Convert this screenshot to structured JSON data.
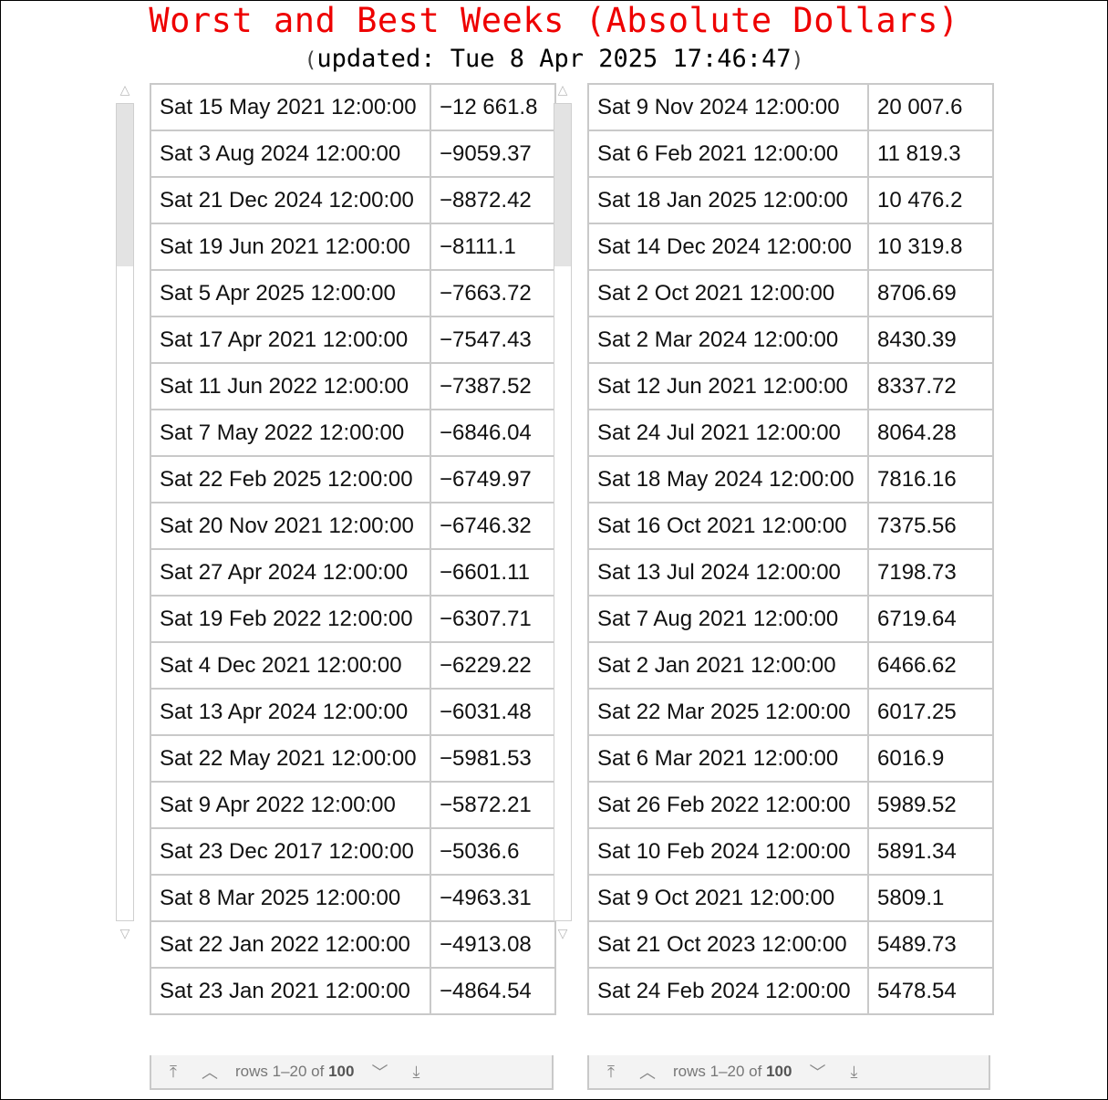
{
  "header": {
    "title": "Worst and Best Weeks",
    "title_paren": "(Absolute Dollars)",
    "updated_open": "(",
    "updated_text": "updated: Tue 8 Apr 2025 17:46:47",
    "updated_close": ")"
  },
  "worst": {
    "rows": [
      {
        "date": "Sat 15 May 2021 12:00:00",
        "value": "−12 661.8"
      },
      {
        "date": "Sat 3 Aug 2024 12:00:00",
        "value": "−9059.37"
      },
      {
        "date": "Sat 21 Dec 2024 12:00:00",
        "value": "−8872.42"
      },
      {
        "date": "Sat 19 Jun 2021 12:00:00",
        "value": "−8111.1"
      },
      {
        "date": "Sat 5 Apr 2025 12:00:00",
        "value": "−7663.72"
      },
      {
        "date": "Sat 17 Apr 2021 12:00:00",
        "value": "−7547.43"
      },
      {
        "date": "Sat 11 Jun 2022 12:00:00",
        "value": "−7387.52"
      },
      {
        "date": "Sat 7 May 2022 12:00:00",
        "value": "−6846.04"
      },
      {
        "date": "Sat 22 Feb 2025 12:00:00",
        "value": "−6749.97"
      },
      {
        "date": "Sat 20 Nov 2021 12:00:00",
        "value": "−6746.32"
      },
      {
        "date": "Sat 27 Apr 2024 12:00:00",
        "value": "−6601.11"
      },
      {
        "date": "Sat 19 Feb 2022 12:00:00",
        "value": "−6307.71"
      },
      {
        "date": "Sat 4 Dec 2021 12:00:00",
        "value": "−6229.22"
      },
      {
        "date": "Sat 13 Apr 2024 12:00:00",
        "value": "−6031.48"
      },
      {
        "date": "Sat 22 May 2021 12:00:00",
        "value": "−5981.53"
      },
      {
        "date": "Sat 9 Apr 2022 12:00:00",
        "value": "−5872.21"
      },
      {
        "date": "Sat 23 Dec 2017 12:00:00",
        "value": "−5036.6"
      },
      {
        "date": "Sat 8 Mar 2025 12:00:00",
        "value": "−4963.31"
      },
      {
        "date": "Sat 22 Jan 2022 12:00:00",
        "value": "−4913.08"
      },
      {
        "date": "Sat 23 Jan 2021 12:00:00",
        "value": "−4864.54"
      }
    ],
    "footer": {
      "rows_prefix": "rows 1–20 of",
      "total": "100"
    }
  },
  "best": {
    "rows": [
      {
        "date": "Sat 9 Nov 2024 12:00:00",
        "value": "20 007.6"
      },
      {
        "date": "Sat 6 Feb 2021 12:00:00",
        "value": "11 819.3"
      },
      {
        "date": "Sat 18 Jan 2025 12:00:00",
        "value": "10 476.2"
      },
      {
        "date": "Sat 14 Dec 2024 12:00:00",
        "value": "10 319.8"
      },
      {
        "date": "Sat 2 Oct 2021 12:00:00",
        "value": "8706.69"
      },
      {
        "date": "Sat 2 Mar 2024 12:00:00",
        "value": "8430.39"
      },
      {
        "date": "Sat 12 Jun 2021 12:00:00",
        "value": "8337.72"
      },
      {
        "date": "Sat 24 Jul 2021 12:00:00",
        "value": "8064.28"
      },
      {
        "date": "Sat 18 May 2024 12:00:00",
        "value": "7816.16"
      },
      {
        "date": "Sat 16 Oct 2021 12:00:00",
        "value": "7375.56"
      },
      {
        "date": "Sat 13 Jul 2024 12:00:00",
        "value": "7198.73"
      },
      {
        "date": "Sat 7 Aug 2021 12:00:00",
        "value": "6719.64"
      },
      {
        "date": "Sat 2 Jan 2021 12:00:00",
        "value": "6466.62"
      },
      {
        "date": "Sat 22 Mar 2025 12:00:00",
        "value": "6017.25"
      },
      {
        "date": "Sat 6 Mar 2021 12:00:00",
        "value": "6016.9"
      },
      {
        "date": "Sat 26 Feb 2022 12:00:00",
        "value": "5989.52"
      },
      {
        "date": "Sat 10 Feb 2024 12:00:00",
        "value": "5891.34"
      },
      {
        "date": "Sat 9 Oct 2021 12:00:00",
        "value": "5809.1"
      },
      {
        "date": "Sat 21 Oct 2023 12:00:00",
        "value": "5489.73"
      },
      {
        "date": "Sat 24 Feb 2024 12:00:00",
        "value": "5478.54"
      }
    ],
    "footer": {
      "rows_prefix": "rows 1–20 of",
      "total": "100"
    }
  },
  "icons": {
    "scroll_up": "△",
    "scroll_down": "▽",
    "first_page": "⤒",
    "prev_page": "︿",
    "next_page": "﹀",
    "last_page": "⤓"
  },
  "colors": {
    "title": "#ee0000",
    "cell_border": "#c9c9c9",
    "footer_bg": "#f3f3f3"
  }
}
